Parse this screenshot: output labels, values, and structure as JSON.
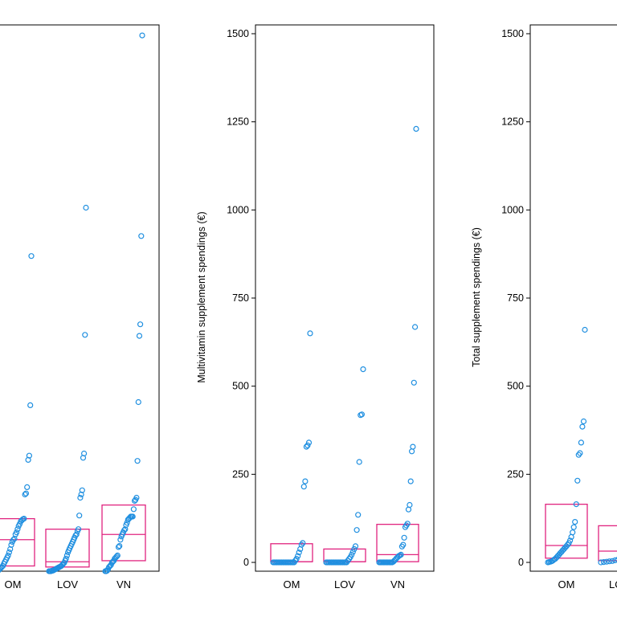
{
  "colors": {
    "points": "#1f8fe0",
    "boxes": "#e0247f",
    "axes": "#000000"
  },
  "groups": [
    "OM",
    "LOV",
    "VN"
  ],
  "chart_data": [
    {
      "type": "scatter",
      "ylabel": "",
      "yticks": [],
      "ylim": [
        0,
        1040
      ],
      "groups": [
        "OM",
        "LOV",
        "VN"
      ],
      "boxes": [
        {
          "q1": 10,
          "median": 60,
          "q3": 100
        },
        {
          "q1": 8,
          "median": 18,
          "q3": 80
        },
        {
          "q1": 20,
          "median": 70,
          "q3": 126
        }
      ],
      "series": [
        {
          "values": [
            0,
            0,
            0,
            1,
            2,
            4,
            6,
            8,
            10,
            14,
            18,
            22,
            26,
            30,
            36,
            42,
            50,
            56,
            60,
            62,
            70,
            74,
            80,
            86,
            90,
            95,
            97,
            99,
            100,
            146,
            148,
            160,
            212,
            220,
            316,
            600
          ]
        },
        {
          "values": [
            0,
            0,
            0,
            1,
            1,
            2,
            3,
            4,
            5,
            6,
            7,
            8,
            9,
            10,
            12,
            14,
            16,
            20,
            24,
            30,
            36,
            40,
            44,
            48,
            52,
            56,
            60,
            64,
            68,
            70,
            76,
            80,
            106,
            140,
            146,
            154,
            216,
            224,
            450,
            692
          ]
        },
        {
          "values": [
            0,
            0,
            1,
            4,
            8,
            10,
            12,
            16,
            18,
            20,
            24,
            26,
            28,
            30,
            46,
            48,
            60,
            66,
            70,
            74,
            78,
            80,
            88,
            92,
            98,
            100,
            102,
            104,
            104,
            104,
            118,
            134,
            136,
            140,
            210,
            322,
            448,
            470,
            638,
            1020
          ]
        }
      ]
    },
    {
      "type": "scatter",
      "ylabel": "Multivitamin supplement spendings (€)",
      "yticks": [
        0,
        250,
        500,
        750,
        1000,
        1250,
        1500
      ],
      "ylim": [
        -25,
        1525
      ],
      "groups": [
        "OM",
        "LOV",
        "VN"
      ],
      "boxes": [
        {
          "q1": 2,
          "median": 2,
          "q3": 53
        },
        {
          "q1": 2,
          "median": 2,
          "q3": 38
        },
        {
          "q1": 2,
          "median": 22,
          "q3": 108
        }
      ],
      "series": [
        {
          "values": [
            0,
            0,
            0,
            0,
            0,
            0,
            0,
            0,
            0,
            0,
            0,
            0,
            0,
            0,
            0,
            0,
            0,
            0,
            5,
            10,
            18,
            28,
            38,
            50,
            55,
            215,
            230,
            328,
            332,
            340,
            650
          ]
        },
        {
          "values": [
            0,
            0,
            0,
            0,
            0,
            0,
            0,
            0,
            0,
            0,
            0,
            0,
            0,
            0,
            0,
            0,
            0,
            5,
            10,
            15,
            22,
            30,
            38,
            46,
            92,
            135,
            285,
            418,
            420,
            548
          ]
        },
        {
          "values": [
            0,
            0,
            0,
            0,
            0,
            0,
            0,
            0,
            0,
            0,
            0,
            0,
            0,
            2,
            5,
            8,
            12,
            15,
            18,
            20,
            22,
            45,
            50,
            70,
            100,
            105,
            110,
            150,
            163,
            230,
            315,
            328,
            510,
            668,
            1230
          ]
        }
      ]
    },
    {
      "type": "scatter",
      "ylabel": "Total supplement spendings (€)",
      "yticks": [
        0,
        250,
        500,
        750,
        1000,
        1250,
        1500
      ],
      "ylim": [
        -25,
        1525
      ],
      "groups": [
        "OM",
        "LOV"
      ],
      "boxes": [
        {
          "q1": 12,
          "median": 48,
          "q3": 165
        },
        {
          "q1": 5,
          "median": 32,
          "q3": 104
        }
      ],
      "series": [
        {
          "values": [
            0,
            1,
            2,
            3,
            5,
            8,
            10,
            14,
            18,
            22,
            26,
            30,
            34,
            38,
            42,
            46,
            50,
            55,
            62,
            72,
            85,
            100,
            115,
            165,
            232,
            305,
            310,
            340,
            385,
            400,
            660
          ]
        },
        {
          "values": [
            0,
            1,
            2,
            3,
            4,
            6,
            8,
            10,
            12,
            14,
            16,
            18,
            20,
            22
          ]
        }
      ]
    }
  ]
}
